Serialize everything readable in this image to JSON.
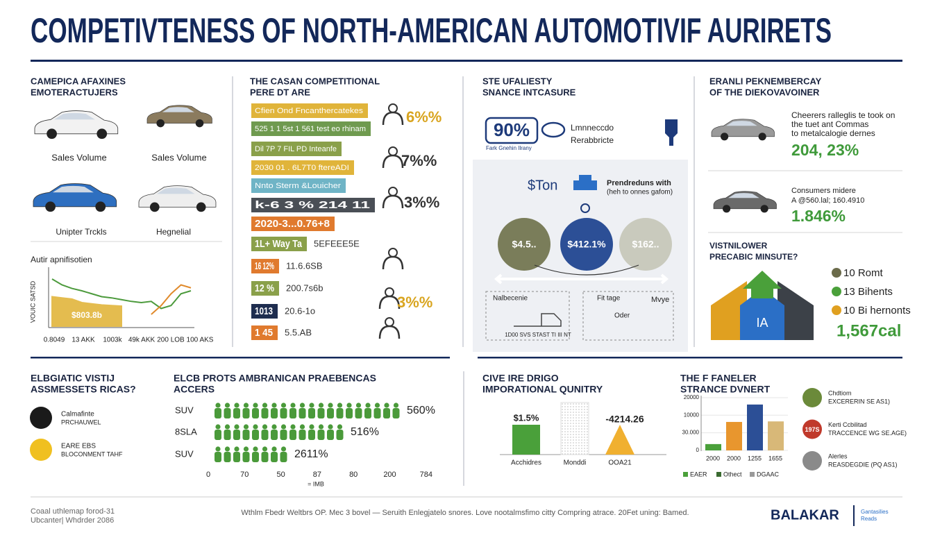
{
  "title": "COMPETIVTENESS OF NORTH-AMERICAN AUTOMOTIVIF AURIRETS",
  "manufacturers": {
    "heading": [
      "CAMEPICA AFAXINES",
      "EMOTERACTUJERS"
    ],
    "car_labels": [
      "Sales Volume",
      "Sales Volume",
      "Unipter Trckls",
      "Hegnelial"
    ],
    "chart": {
      "type": "area",
      "title": "Autir apnifisotien",
      "y_label": "VOUIC SATSD",
      "value_label": "$803.8b",
      "x_labels": [
        "0.8049",
        "13 AKK",
        "1003k",
        "49k AKK",
        "200 LOB",
        "100 AKS"
      ],
      "ylim": [
        0,
        100
      ],
      "series": [
        {
          "color": "#e2b53c",
          "fill": true,
          "values": [
            50,
            48,
            46,
            40,
            38,
            36,
            35,
            34,
            null,
            null,
            null,
            null,
            null,
            null,
            null
          ]
        },
        {
          "color": "#4c9a3c",
          "values": [
            80,
            70,
            64,
            60,
            55,
            50,
            48,
            45,
            42,
            40,
            42,
            30,
            35,
            55,
            60
          ]
        },
        {
          "color": "#e08a2c",
          "values": [
            null,
            null,
            null,
            null,
            null,
            null,
            null,
            null,
            null,
            null,
            20,
            35,
            55,
            70,
            65
          ]
        }
      ]
    }
  },
  "sector": {
    "heading": [
      "THE CASAN COMPETITIONAL",
      "PERE DT ARE"
    ],
    "rows": [
      {
        "tag": "Cfien Ond Fncanthercatekes",
        "color": "#e0b43a"
      },
      {
        "tag": "525 1 1 5st 1 561 test eo rhinam",
        "color": "#6f9a4f"
      },
      {
        "tag": "Dil 7P 7 FIL PD Inteanfe",
        "color": "#8aa04a"
      },
      {
        "tag": "2030 01 . 6L7T0 ftereADI",
        "color": "#e0b43a"
      },
      {
        "tag": "Nnto Sterm &Louicher",
        "color": "#6fb4c6"
      },
      {
        "tag": "k-6 3 % 214 11",
        "color": "#4a4f56"
      },
      {
        "tag": "2020-3...0.76+8",
        "color": "#e07a2e"
      },
      {
        "tag": "1L+ Way Ta",
        "color": "#8aa04a",
        "note": "5EFEEE5E"
      },
      {
        "tag": "16 12%",
        "color": "#e07a2e",
        "note": "11.6.6SB"
      },
      {
        "tag": "12 %",
        "color": "#8aa04a",
        "note": "200.7s6b"
      },
      {
        "tag": "1013",
        "color": "#1e2d4f",
        "note": "20.6-1o"
      },
      {
        "tag": "1 45",
        "color": "#e07a2e",
        "note": "5.5.AB"
      }
    ],
    "icon_labels": [
      "6%%",
      "7%%",
      "3%%",
      "3%%"
    ]
  },
  "value": {
    "heading": [
      "STE UFALIESTY",
      "SNANCE INTCASURE"
    ],
    "badge": "90%",
    "badge_caption": "Fark Gnehin Ilrany",
    "brand": [
      "Lmnneccdo",
      "Rerabbricte"
    ],
    "box_title": "$Ton",
    "box_text": [
      "Prendreduns with",
      "(heh to onnes gafom)"
    ],
    "circles": [
      "$4.5..",
      "$412.1%",
      "$162.."
    ],
    "bottom": [
      "Nalbecenie",
      "Fit tage",
      "Mvye",
      "Oder",
      "1D00 SVS STAST TI III NT"
    ]
  },
  "perception": {
    "heading": [
      "ERANLI PEKNEMBERCAY",
      "OF THE DIEKOVAVOINER"
    ],
    "block1": [
      "Cheerers ralleglis te took on",
      "the tuet ant Commas",
      "to metalcalogie dernes"
    ],
    "stat1": "204, 23%",
    "block2": [
      "Consumers midere",
      "A @560.lal; 160.4910"
    ],
    "stat2": "1.846%",
    "heading2": [
      "VISTNILOWER",
      "PRECABIC MINSUTE?"
    ],
    "house_label": "IA",
    "legend": [
      {
        "text": "10 Romt",
        "color": "#6b6b4a"
      },
      {
        "text": "13 Bihents",
        "color": "#4aa03a"
      },
      {
        "text": "10 Bi hernonts",
        "color": "#e0a020"
      }
    ],
    "stat3": "1,567cal"
  },
  "assessments": {
    "heading": [
      "ELBGIATIC VISTIJ",
      "ASSMESSETS RICAS?"
    ],
    "items": [
      [
        "Calmafinte",
        "PRCHAUWEL"
      ],
      [
        "EARE EBS",
        "BLOCONMENT TAHF"
      ]
    ]
  },
  "preferences": {
    "heading": [
      "ELCB PROTS AMBRANICAN PRAEBENCAS",
      "ACCERS"
    ],
    "rows": [
      {
        "name": "SUV",
        "count": 20,
        "label": "560%"
      },
      {
        "name": "8SLA",
        "count": 14,
        "label": "516%"
      },
      {
        "name": "SUV",
        "count": 8,
        "label": "2611%"
      }
    ],
    "x_labels": [
      "0",
      "70",
      "50",
      "87",
      "80",
      "200",
      "784"
    ],
    "x_title": "= IMB"
  },
  "imports": {
    "heading": [
      "CIVE IRE DRIGO",
      "IMPORATIONAL QUNITRY"
    ],
    "value_labels": [
      "$1.5%",
      "-4214.26"
    ],
    "labels": [
      "Acchidres",
      "Monddi",
      "OOA21"
    ]
  },
  "ownership": {
    "heading": [
      "THE F FANELER",
      "STRANCE DVNERT"
    ],
    "chart": {
      "type": "bar",
      "categories": [
        "2000",
        "2000",
        "1255",
        "1655"
      ],
      "values": [
        2400,
        10800,
        17400,
        11000
      ],
      "colors": [
        "#4aa03a",
        "#e8962e",
        "#2c4f96",
        "#d8b878"
      ],
      "ylim": [
        0,
        20000
      ],
      "ytick_labels": [
        "20000",
        "10000",
        "30.000",
        "0"
      ],
      "legend": [
        {
          "name": "EAER",
          "color": "#4aa03a"
        },
        {
          "name": "Othect",
          "color": "#3a6a30"
        },
        {
          "name": "DGAAC",
          "color": "#999"
        }
      ]
    },
    "items": [
      {
        "lines": [
          "Chdtiom",
          "EXCERERIN SE AS1)"
        ],
        "color": "#6b8a3a"
      },
      {
        "lines": [
          "Kerti Ccbilitad",
          "TRACCENCE WG SE.AGE)"
        ],
        "color": "#c0392b",
        "badge": "197S"
      },
      {
        "lines": [
          "Alerles",
          "REASDEGDIE (PQ AS1)"
        ],
        "color": "#8a8a8a"
      }
    ]
  },
  "footer": {
    "left": [
      "Coaal uthlemap forod-31",
      "Ubcanter| Whdrder 2086"
    ],
    "center": "Wthlm Fbedr Weltbrs OP. Mec 3 bovel — Seruith Enlegjatelo snores. Love nootalmsfimo citty Compring atrace. 20Fet uning: Bamed.",
    "brand": "BALAKAR",
    "badge": [
      "Gantasilies",
      "Reads"
    ]
  }
}
